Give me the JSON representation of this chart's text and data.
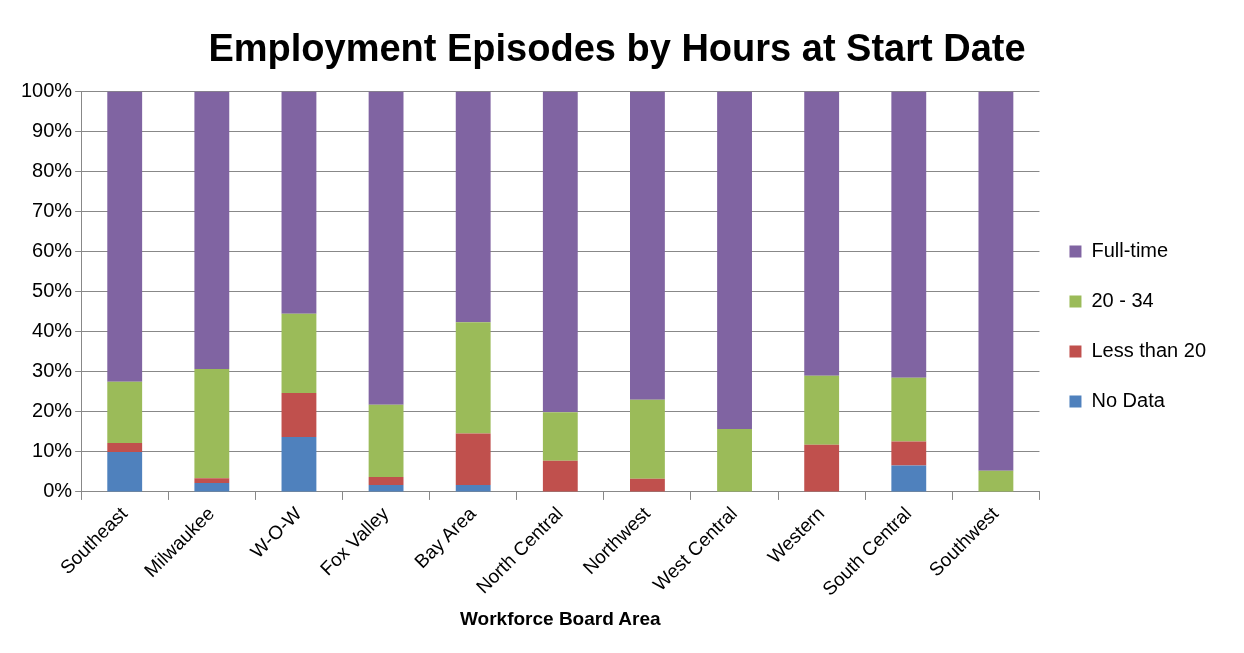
{
  "chart_data": {
    "type": "bar",
    "title": "Employment Episodes by Hours at Start Date",
    "xlabel": "Workforce Board Area",
    "categories": [
      "Southeast",
      "Milwaukee",
      "W-O-W",
      "Fox Valley",
      "Bay Area",
      "North Central",
      "Northwest",
      "West Central",
      "Western",
      "South Central",
      "Southwest"
    ],
    "series": [
      {
        "name": "No Data",
        "color": "#4f81bd",
        "values": [
          10,
          2.2,
          13.7,
          1.7,
          1.7,
          0,
          0,
          0,
          0,
          6.6,
          0
        ]
      },
      {
        "name": "Less than 20",
        "color": "#c0504d",
        "values": [
          2.2,
          1.2,
          11,
          2,
          12.9,
          7.8,
          3.3,
          0,
          11.8,
          6,
          0
        ]
      },
      {
        "name": "20 - 34",
        "color": "#9bbb59",
        "values": [
          15.3,
          27.3,
          19.8,
          18.1,
          27.8,
          12.1,
          19.7,
          15.7,
          17.2,
          15.9,
          5.3
        ]
      },
      {
        "name": "Full-time",
        "color": "#8064a2",
        "values": [
          72.5,
          69.3,
          55.5,
          78.2,
          57.6,
          80.1,
          77,
          84.3,
          71,
          71.5,
          94.7
        ]
      }
    ],
    "stacked": true,
    "ylim": [
      0,
      100
    ],
    "yticks": [
      {
        "value": 0,
        "label": "0%"
      },
      {
        "value": 10,
        "label": "10%"
      },
      {
        "value": 20,
        "label": "20%"
      },
      {
        "value": 30,
        "label": "30%"
      },
      {
        "value": 40,
        "label": "40%"
      },
      {
        "value": 50,
        "label": "50%"
      },
      {
        "value": 60,
        "label": "60%"
      },
      {
        "value": 70,
        "label": "70%"
      },
      {
        "value": 80,
        "label": "80%"
      },
      {
        "value": 90,
        "label": "90%"
      },
      {
        "value": 100,
        "label": "100%"
      }
    ],
    "grid": "y",
    "legend": "right"
  }
}
